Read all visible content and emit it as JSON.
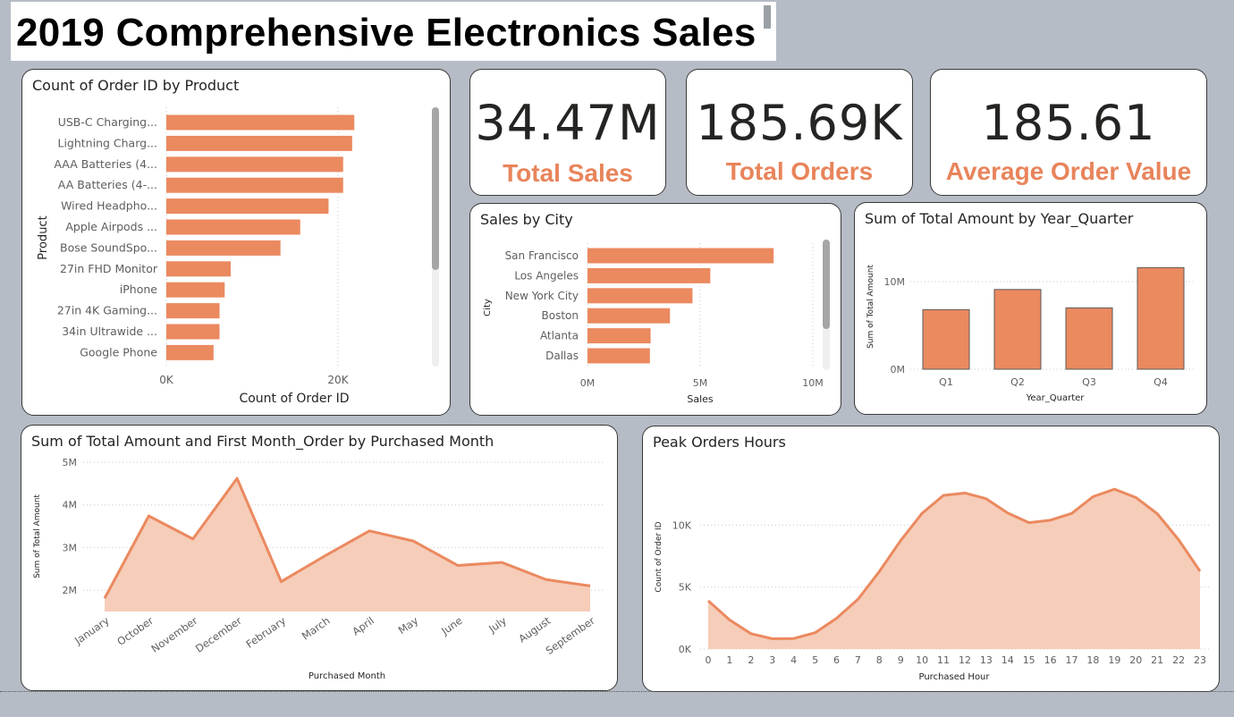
{
  "page": {
    "title": "2019 Comprehensive Electronics Sales"
  },
  "colors": {
    "accent": "#e8845b",
    "area_fill": "#f6cdb9",
    "bar": "#eb895f"
  },
  "kpis": [
    {
      "value": "34.47M",
      "label": "Total Sales"
    },
    {
      "value": "185.69K",
      "label": "Total Orders"
    },
    {
      "value": "185.61",
      "label": "Average Order Value"
    }
  ],
  "chart_data": [
    {
      "id": "orders_by_product",
      "type": "bar",
      "orientation": "horizontal",
      "title": "Count of Order ID by Product",
      "xlabel": "Count of Order ID",
      "ylabel": "Product",
      "categories": [
        "USB-C Charging...",
        "Lightning Charg...",
        "AAA Batteries (4...",
        "AA Batteries (4-...",
        "Wired Headpho...",
        "Apple Airpods ...",
        "Bose SoundSpo...",
        "27in FHD Monitor",
        "iPhone",
        "27in 4K Gaming...",
        "34in Ultrawide ...",
        "Google Phone"
      ],
      "values": [
        21900,
        21650,
        20600,
        20600,
        18900,
        15600,
        13300,
        7500,
        6800,
        6200,
        6200,
        5500
      ],
      "xlim": [
        0,
        30000
      ],
      "xticks": [
        {
          "value": 0,
          "label": "0K"
        },
        {
          "value": 20000,
          "label": "20K"
        }
      ],
      "grid": true
    },
    {
      "id": "sales_by_city",
      "type": "bar",
      "orientation": "horizontal",
      "title": "Sales by City",
      "xlabel": "Sales",
      "ylabel": "City",
      "categories": [
        "San Francisco",
        "Los Angeles",
        "New York City",
        "Boston",
        "Atlanta",
        "Dallas"
      ],
      "values": [
        8260000,
        5450000,
        4660000,
        3660000,
        2800000,
        2770000
      ],
      "xlim": [
        0,
        10000000
      ],
      "xticks": [
        {
          "value": 0,
          "label": "0M"
        },
        {
          "value": 5000000,
          "label": "5M"
        },
        {
          "value": 10000000,
          "label": "10M"
        }
      ],
      "grid": true
    },
    {
      "id": "amount_by_quarter",
      "type": "bar",
      "title": "Sum of Total Amount by Year_Quarter",
      "xlabel": "Year_Quarter",
      "ylabel": "Sum of Total Amount",
      "categories": [
        "Q1",
        "Q2",
        "Q3",
        "Q4"
      ],
      "values": [
        6800000,
        9100000,
        7000000,
        11600000
      ],
      "ylim": [
        0,
        15000000
      ],
      "yticks": [
        {
          "value": 0,
          "label": "0M"
        },
        {
          "value": 10000000,
          "label": "10M"
        }
      ],
      "grid": true
    },
    {
      "id": "amount_by_month",
      "type": "area",
      "title": "Sum of Total Amount and First Month_Order by Purchased Month",
      "xlabel": "Purchased Month",
      "ylabel": "Sum of Total Amount",
      "categories": [
        "January",
        "October",
        "November",
        "December",
        "February",
        "March",
        "April",
        "May",
        "June",
        "July",
        "August",
        "September"
      ],
      "values": [
        1810000,
        3740000,
        3200000,
        4620000,
        2200000,
        2810000,
        3390000,
        3150000,
        2580000,
        2650000,
        2250000,
        2100000
      ],
      "ylim": [
        1500000,
        5000000
      ],
      "yticks": [
        {
          "value": 2000000,
          "label": "2M"
        },
        {
          "value": 3000000,
          "label": "3M"
        },
        {
          "value": 4000000,
          "label": "4M"
        },
        {
          "value": 5000000,
          "label": "5M"
        }
      ],
      "grid": true
    },
    {
      "id": "peak_hours",
      "type": "area",
      "title": "Peak Orders Hours",
      "xlabel": "Purchased Hour",
      "ylabel": "Count of Order ID",
      "categories": [
        "0",
        "1",
        "2",
        "3",
        "4",
        "5",
        "6",
        "7",
        "8",
        "9",
        "10",
        "11",
        "12",
        "13",
        "14",
        "15",
        "16",
        "17",
        "18",
        "19",
        "20",
        "21",
        "22",
        "23"
      ],
      "values": [
        3900,
        2350,
        1240,
        830,
        850,
        1320,
        2480,
        4010,
        6250,
        8750,
        10950,
        12400,
        12590,
        12130,
        10980,
        10200,
        10400,
        10940,
        12300,
        12900,
        12230,
        10920,
        8820,
        6280
      ],
      "ylim": [
        0,
        14500
      ],
      "yticks": [
        {
          "value": 0,
          "label": "0K"
        },
        {
          "value": 5000,
          "label": "5K"
        },
        {
          "value": 10000,
          "label": "10K"
        }
      ],
      "grid": true
    }
  ]
}
